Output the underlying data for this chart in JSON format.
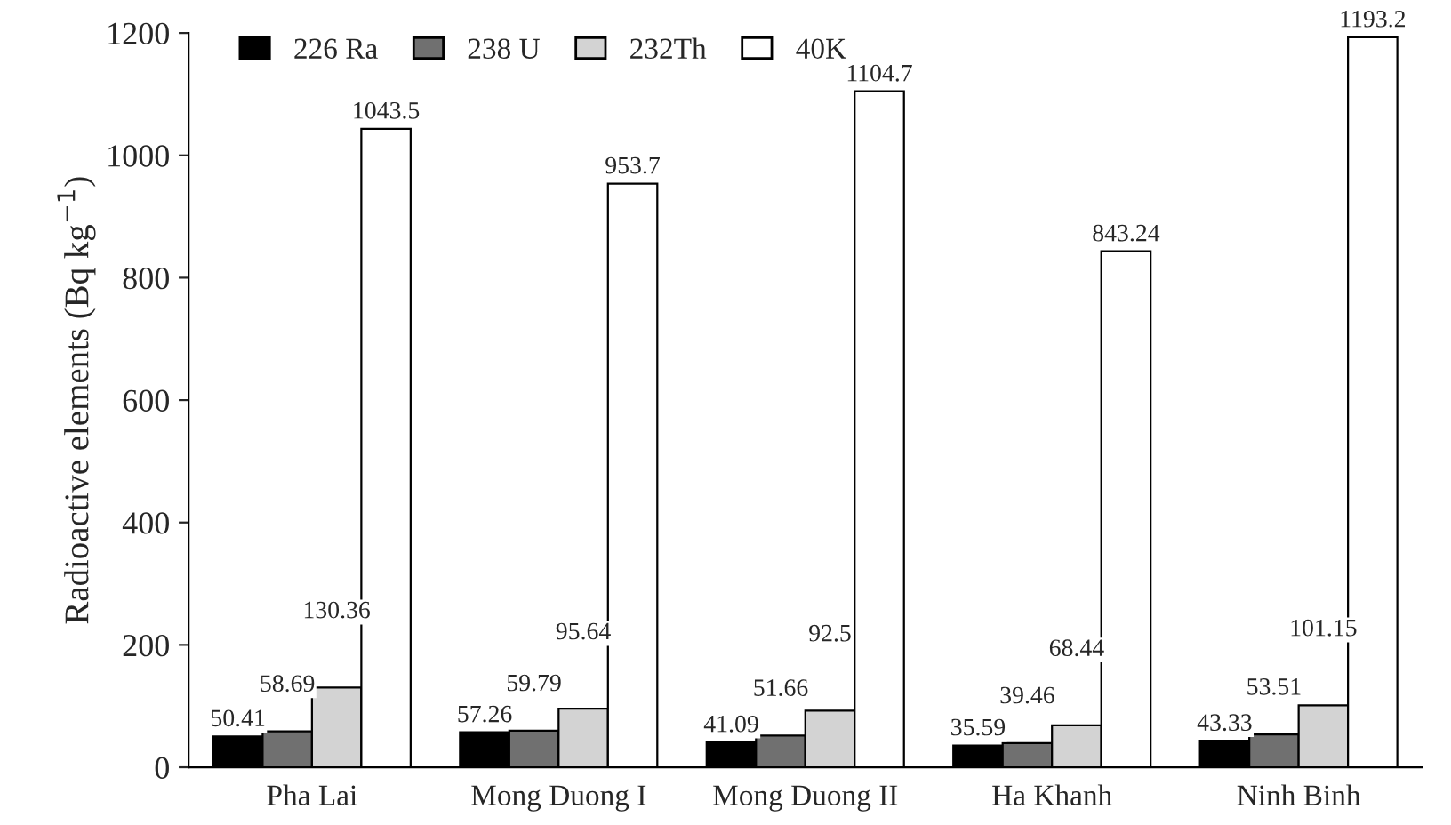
{
  "chart_data": {
    "type": "bar",
    "ylabel": "Radioactive elements (Bq kg$^{−1}$)",
    "categories": [
      "Pha Lai",
      "Mong Duong I",
      "Mong Duong II",
      "Ha Khanh",
      "Ninh Binh"
    ],
    "series": [
      {
        "name": "226 Ra",
        "color": "#000000",
        "values": [
          50.41,
          57.26,
          41.09,
          35.59,
          43.33
        ],
        "value_labels": [
          "50.41",
          "57.26",
          "41.09",
          "35.59",
          "43.33"
        ]
      },
      {
        "name": "238 U",
        "color": "#707070",
        "values": [
          58.69,
          59.79,
          51.66,
          39.46,
          53.51
        ],
        "value_labels": [
          "58.69",
          "59.79",
          "51.66",
          "39.46",
          "53.51"
        ]
      },
      {
        "name": "232Th",
        "color": "#d3d3d3",
        "values": [
          130.36,
          95.64,
          92.5,
          68.44,
          101.15
        ],
        "value_labels": [
          "130.36",
          "95.64",
          "92.5",
          "68.44",
          "101.15"
        ]
      },
      {
        "name": "40K",
        "color": "#ffffff",
        "values": [
          1043.5,
          953.7,
          1104.7,
          843.24,
          1193.2
        ],
        "value_labels": [
          "1043.5",
          "953.7",
          "1104.7",
          "843.24",
          "1193.2"
        ]
      }
    ],
    "ylim": [
      0,
      1200
    ],
    "yticks": [
      0,
      200,
      400,
      600,
      800,
      1000,
      1200
    ],
    "grid": false,
    "legend": "top left"
  }
}
